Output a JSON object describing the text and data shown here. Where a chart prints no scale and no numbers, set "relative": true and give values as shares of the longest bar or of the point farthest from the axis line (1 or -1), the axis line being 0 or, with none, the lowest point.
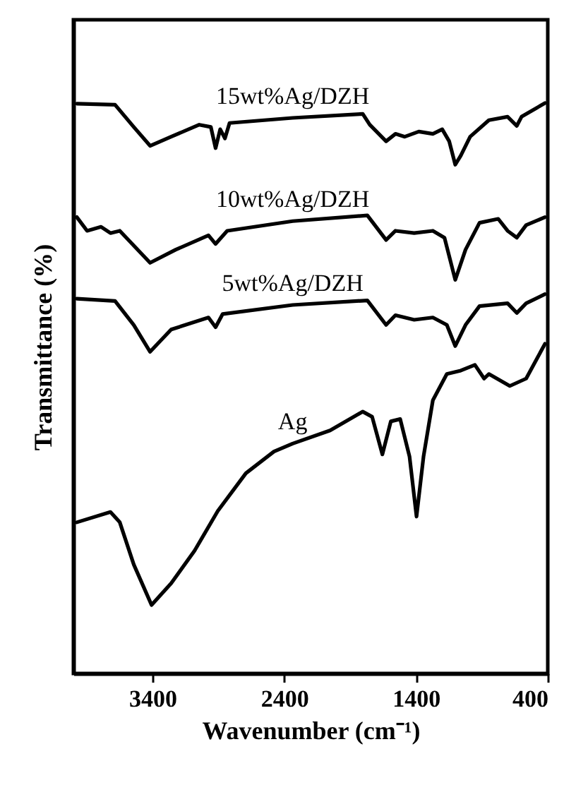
{
  "chart_data": {
    "type": "line",
    "relative": true,
    "xlabel": "Wavenumber (cm⁻¹)",
    "ylabel": "Transmittance (%)",
    "xlim": [
      4000,
      400
    ],
    "xticks": [
      3400,
      2400,
      1400,
      400
    ],
    "grid": false,
    "marker": "none",
    "line_style": "solid",
    "series": [
      {
        "name": "15wt%Ag/DZH",
        "color": "#000000",
        "x": [
          3974,
          3684,
          3542,
          3418,
          3258,
          3045,
          2957,
          2921,
          2886,
          2850,
          2815,
          2336,
          1804,
          1751,
          1627,
          1556,
          1485,
          1379,
          1272,
          1201,
          1148,
          1102,
          1060,
          989,
          847,
          705,
          635,
          599,
          421
        ],
        "values": [
          0.999,
          0.997,
          0.958,
          0.925,
          0.941,
          0.962,
          0.958,
          0.921,
          0.954,
          0.938,
          0.965,
          0.974,
          0.981,
          0.962,
          0.933,
          0.946,
          0.941,
          0.95,
          0.946,
          0.954,
          0.933,
          0.892,
          0.908,
          0.941,
          0.97,
          0.976,
          0.96,
          0.976,
          1.0
        ]
      },
      {
        "name": "10wt%Ag/DZH",
        "color": "#000000",
        "x": [
          3974,
          3896,
          3790,
          3719,
          3648,
          3418,
          3223,
          2975,
          2921,
          2833,
          2336,
          1769,
          1627,
          1556,
          1414,
          1272,
          1184,
          1102,
          1024,
          918,
          776,
          705,
          635,
          564,
          421
        ],
        "values": [
          0.8,
          0.776,
          0.783,
          0.772,
          0.776,
          0.72,
          0.743,
          0.768,
          0.753,
          0.776,
          0.793,
          0.803,
          0.76,
          0.776,
          0.772,
          0.776,
          0.764,
          0.69,
          0.743,
          0.79,
          0.797,
          0.776,
          0.764,
          0.786,
          0.8
        ]
      },
      {
        "name": "5wt%Ag/DZH",
        "color": "#000000",
        "x": [
          3974,
          3684,
          3542,
          3418,
          3258,
          2975,
          2921,
          2868,
          2336,
          1769,
          1627,
          1556,
          1414,
          1272,
          1166,
          1102,
          1024,
          918,
          705,
          635,
          564,
          421
        ],
        "values": [
          0.657,
          0.653,
          0.611,
          0.564,
          0.603,
          0.624,
          0.607,
          0.63,
          0.646,
          0.654,
          0.611,
          0.628,
          0.62,
          0.624,
          0.611,
          0.574,
          0.611,
          0.644,
          0.649,
          0.632,
          0.649,
          0.665
        ]
      },
      {
        "name": "Ag",
        "color": "#000000",
        "x": [
          3974,
          3719,
          3648,
          3542,
          3407,
          3258,
          3081,
          2904,
          2691,
          2478,
          2336,
          2052,
          1804,
          1733,
          1655,
          1591,
          1520,
          1449,
          1396,
          1343,
          1272,
          1166,
          1060,
          953,
          883,
          847,
          688,
          564,
          421
        ],
        "values": [
          0.265,
          0.283,
          0.265,
          0.191,
          0.12,
          0.158,
          0.215,
          0.285,
          0.351,
          0.389,
          0.403,
          0.426,
          0.459,
          0.45,
          0.384,
          0.442,
          0.446,
          0.38,
          0.275,
          0.38,
          0.479,
          0.525,
          0.531,
          0.541,
          0.517,
          0.525,
          0.504,
          0.517,
          0.578
        ]
      }
    ]
  }
}
